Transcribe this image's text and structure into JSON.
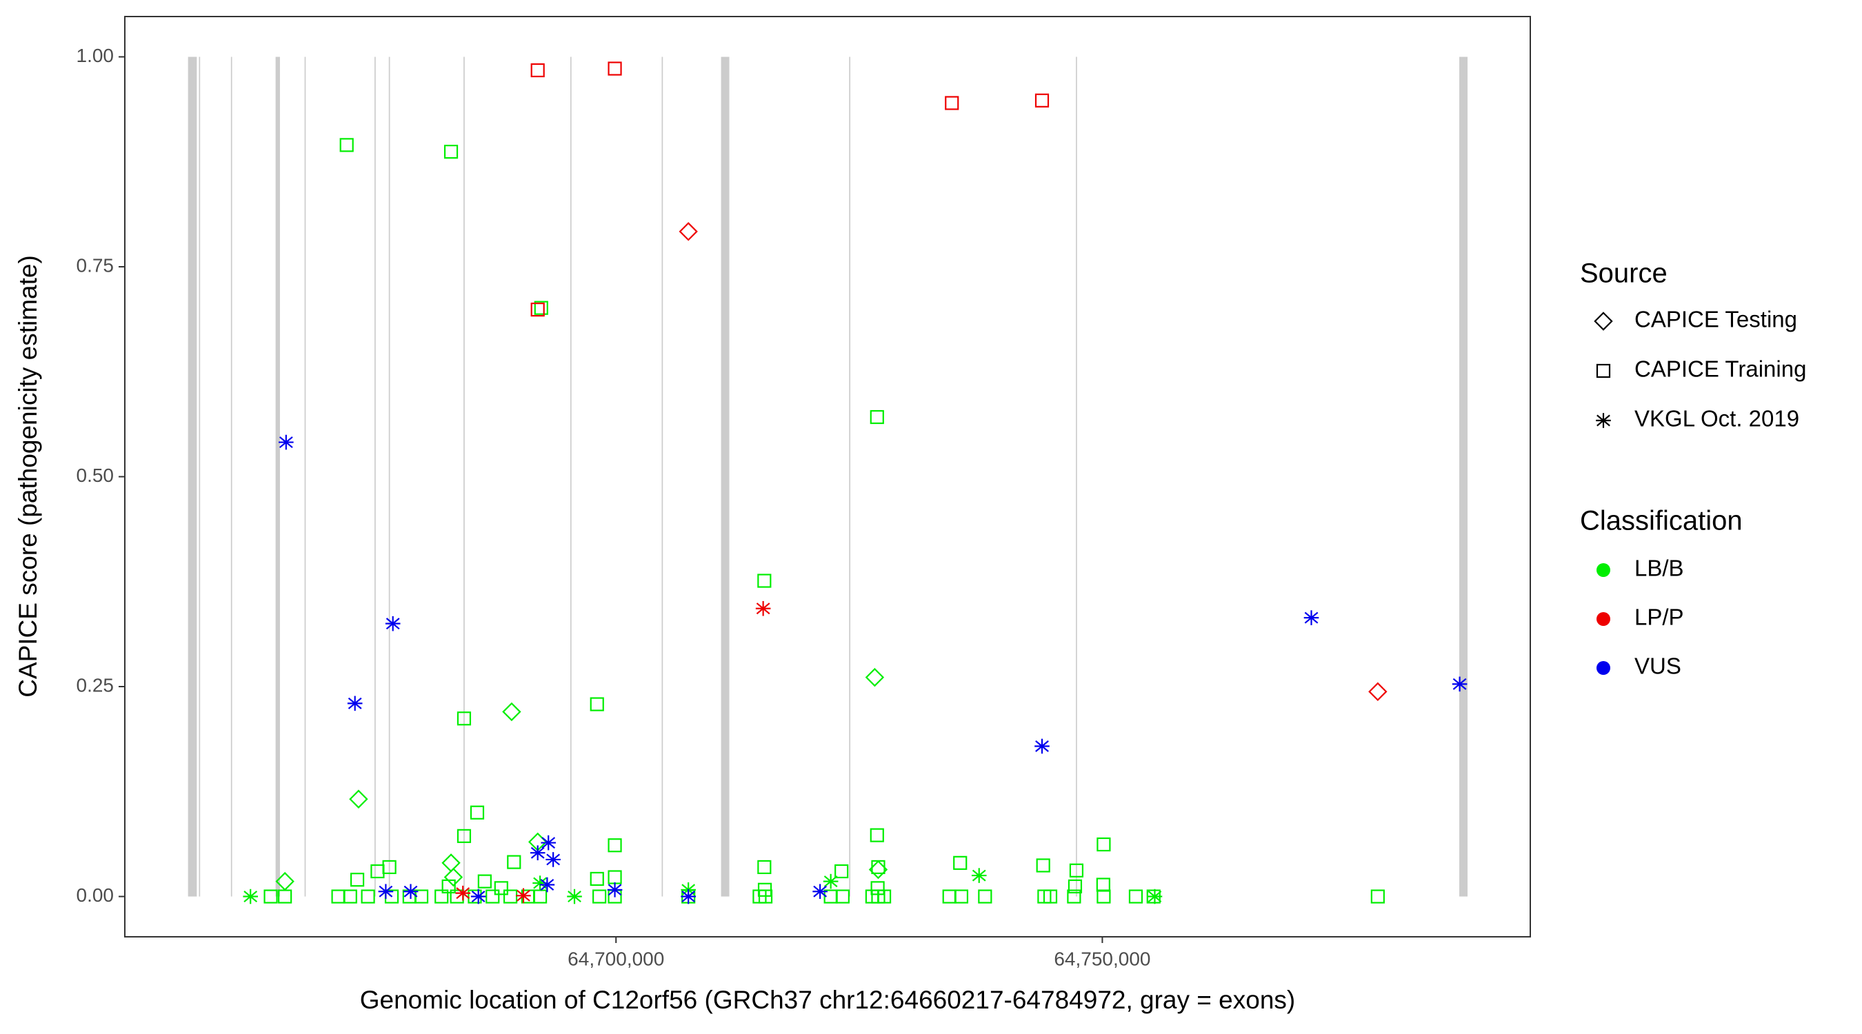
{
  "chart_data": {
    "type": "scatter",
    "xlabel": "Genomic location of C12orf56 (GRCh37 chr12:64660217-64784972, gray = exons)",
    "ylabel": "CAPICE score (pathogenicity estimate)",
    "xlim": [
      64649500,
      64794000
    ],
    "ylim": [
      -0.048,
      1.048
    ],
    "xticks": [
      {
        "value": 64700000,
        "label": "64,700,000"
      },
      {
        "value": 64750000,
        "label": "64,750,000"
      }
    ],
    "yticks": [
      {
        "value": 0,
        "label": "0.00"
      },
      {
        "value": 0.25,
        "label": "0.25"
      },
      {
        "value": 0.5,
        "label": "0.50"
      },
      {
        "value": 0.75,
        "label": "0.75"
      },
      {
        "value": 1,
        "label": "1.00"
      }
    ],
    "exon_color": "#cccccc",
    "exons": [
      [
        64656000,
        64656900
      ],
      [
        64657120,
        64657240
      ],
      [
        64660410,
        64660530
      ],
      [
        64665000,
        64665450
      ],
      [
        64667980,
        64668100
      ],
      [
        64675170,
        64675290
      ],
      [
        64676640,
        64676760
      ],
      [
        64684320,
        64684440
      ],
      [
        64695300,
        64695420
      ],
      [
        64704700,
        64704820
      ],
      [
        64710800,
        64711650
      ],
      [
        64723970,
        64724090
      ],
      [
        64747280,
        64747400
      ],
      [
        64786700,
        64787550
      ]
    ],
    "legend": {
      "source": {
        "title": "Source",
        "items": [
          {
            "label": "CAPICE Testing",
            "shape": "diamond"
          },
          {
            "label": "CAPICE Training",
            "shape": "square"
          },
          {
            "label": "VKGL Oct. 2019",
            "shape": "asterisk"
          }
        ]
      },
      "classification": {
        "title": "Classification",
        "items": [
          {
            "label": "LB/B",
            "color": "#00ee00"
          },
          {
            "label": "LP/P",
            "color": "#ee0000"
          },
          {
            "label": "VUS",
            "color": "#0000ee"
          }
        ]
      }
    },
    "series": [
      {
        "source": "CAPICE Training",
        "classification": "LB/B",
        "x": [
          64672310,
          64683040,
          64692310,
          64726840,
          64715250,
          64684380,
          64698050,
          64685730,
          64726840,
          64699880,
          64750140,
          64684380,
          64689510,
          64676700,
          64675480,
          64673400,
          64735380,
          64743920,
          64747340,
          64715250,
          64723180,
          64726960,
          64698050,
          64699880,
          64664500,
          64665960,
          64671450,
          64672670,
          64674500,
          64676940,
          64678770,
          64679990,
          64682060,
          64683650,
          64685480,
          64687310,
          64689140,
          64690970,
          64692190,
          64698290,
          64699880,
          64707440,
          64714760,
          64715370,
          64722080,
          64723300,
          64726350,
          64726960,
          64727570,
          64734280,
          64735500,
          64737940,
          64744040,
          64744650,
          64747090,
          64750140,
          64753440,
          64755270,
          64778320,
          64682800,
          64686500,
          64688200,
          64715300,
          64726900,
          64747200,
          64750100
        ],
        "values": [
          0.895,
          0.887,
          0.701,
          0.571,
          0.376,
          0.212,
          0.229,
          0.1,
          0.073,
          0.061,
          0.062,
          0.072,
          0.041,
          0.035,
          0.03,
          0.02,
          0.04,
          0.037,
          0.031,
          0.035,
          0.03,
          0.035,
          0.021,
          0.023,
          0,
          0,
          0,
          0,
          0,
          0,
          0,
          0,
          0,
          0,
          0,
          0,
          0,
          0,
          0,
          0,
          0,
          0,
          0,
          0,
          0,
          0,
          0,
          0,
          0,
          0,
          0,
          0,
          0,
          0,
          0,
          0,
          0,
          0,
          0,
          0.012,
          0.018,
          0.01,
          0.008,
          0.01,
          0.012,
          0.014
        ]
      },
      {
        "source": "CAPICE Training",
        "classification": "LP/P",
        "x": [
          64691950,
          64699880,
          64734530,
          64743800,
          64691950
        ],
        "values": [
          0.984,
          0.986,
          0.945,
          0.948,
          0.699
        ]
      },
      {
        "source": "CAPICE Testing",
        "classification": "LB/B",
        "x": [
          64665960,
          64673530,
          64689270,
          64726600,
          64683040,
          64691950,
          64683280,
          64726960
        ],
        "values": [
          0.018,
          0.116,
          0.22,
          0.261,
          0.04,
          0.065,
          0.023,
          0.032
        ]
      },
      {
        "source": "CAPICE Testing",
        "classification": "LP/P",
        "x": [
          64707440,
          64778320
        ],
        "values": [
          0.792,
          0.244
        ]
      },
      {
        "source": "VKGL Oct. 2019",
        "classification": "LB/B",
        "x": [
          64662420,
          64695730,
          64707440,
          64737330,
          64722080,
          64755390,
          64692190
        ],
        "values": [
          0,
          0,
          0.008,
          0.025,
          0.018,
          0,
          0.016
        ]
      },
      {
        "source": "VKGL Oct. 2019",
        "classification": "LP/P",
        "x": [
          64715130,
          64684260,
          64690480
        ],
        "values": [
          0.343,
          0.004,
          0.001
        ]
      },
      {
        "source": "VKGL Oct. 2019",
        "classification": "VUS",
        "x": [
          64666080,
          64677060,
          64673160,
          64743800,
          64771490,
          64786740,
          64693050,
          64693540,
          64691950,
          64692920,
          64699880,
          64676330,
          64678890,
          64685850,
          64707440,
          64720980
        ],
        "values": [
          0.541,
          0.325,
          0.23,
          0.179,
          0.332,
          0.253,
          0.064,
          0.044,
          0.052,
          0.014,
          0.008,
          0.006,
          0.006,
          0,
          0,
          0.006
        ]
      }
    ]
  }
}
